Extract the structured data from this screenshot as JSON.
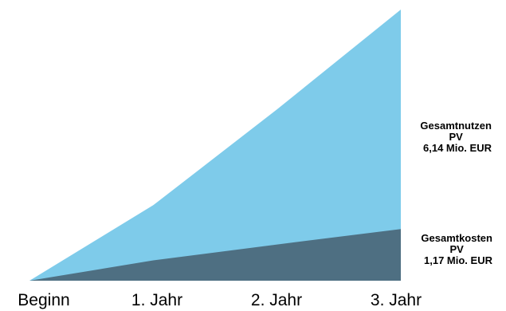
{
  "chart_data": {
    "type": "area",
    "categories": [
      "Beginn",
      "1. Jahr",
      "2. Jahr",
      "3. Jahr"
    ],
    "ylim": [
      0,
      6.14
    ],
    "grid": false,
    "series": [
      {
        "name": "Gesamtnutzen PV",
        "label_lines": [
          "Gesamtnutzen",
          "PV",
          "6,14 Mio. EUR"
        ],
        "values": [
          0,
          1.71,
          3.88,
          6.14
        ],
        "color": "#7ECBEA"
      },
      {
        "name": "Gesamtkosten PV",
        "label_lines": [
          "Gesamtkosten",
          "PV",
          "1,17 Mio. EUR"
        ],
        "values": [
          0,
          0.46,
          0.82,
          1.17
        ],
        "color": "#4E6F82"
      }
    ]
  }
}
